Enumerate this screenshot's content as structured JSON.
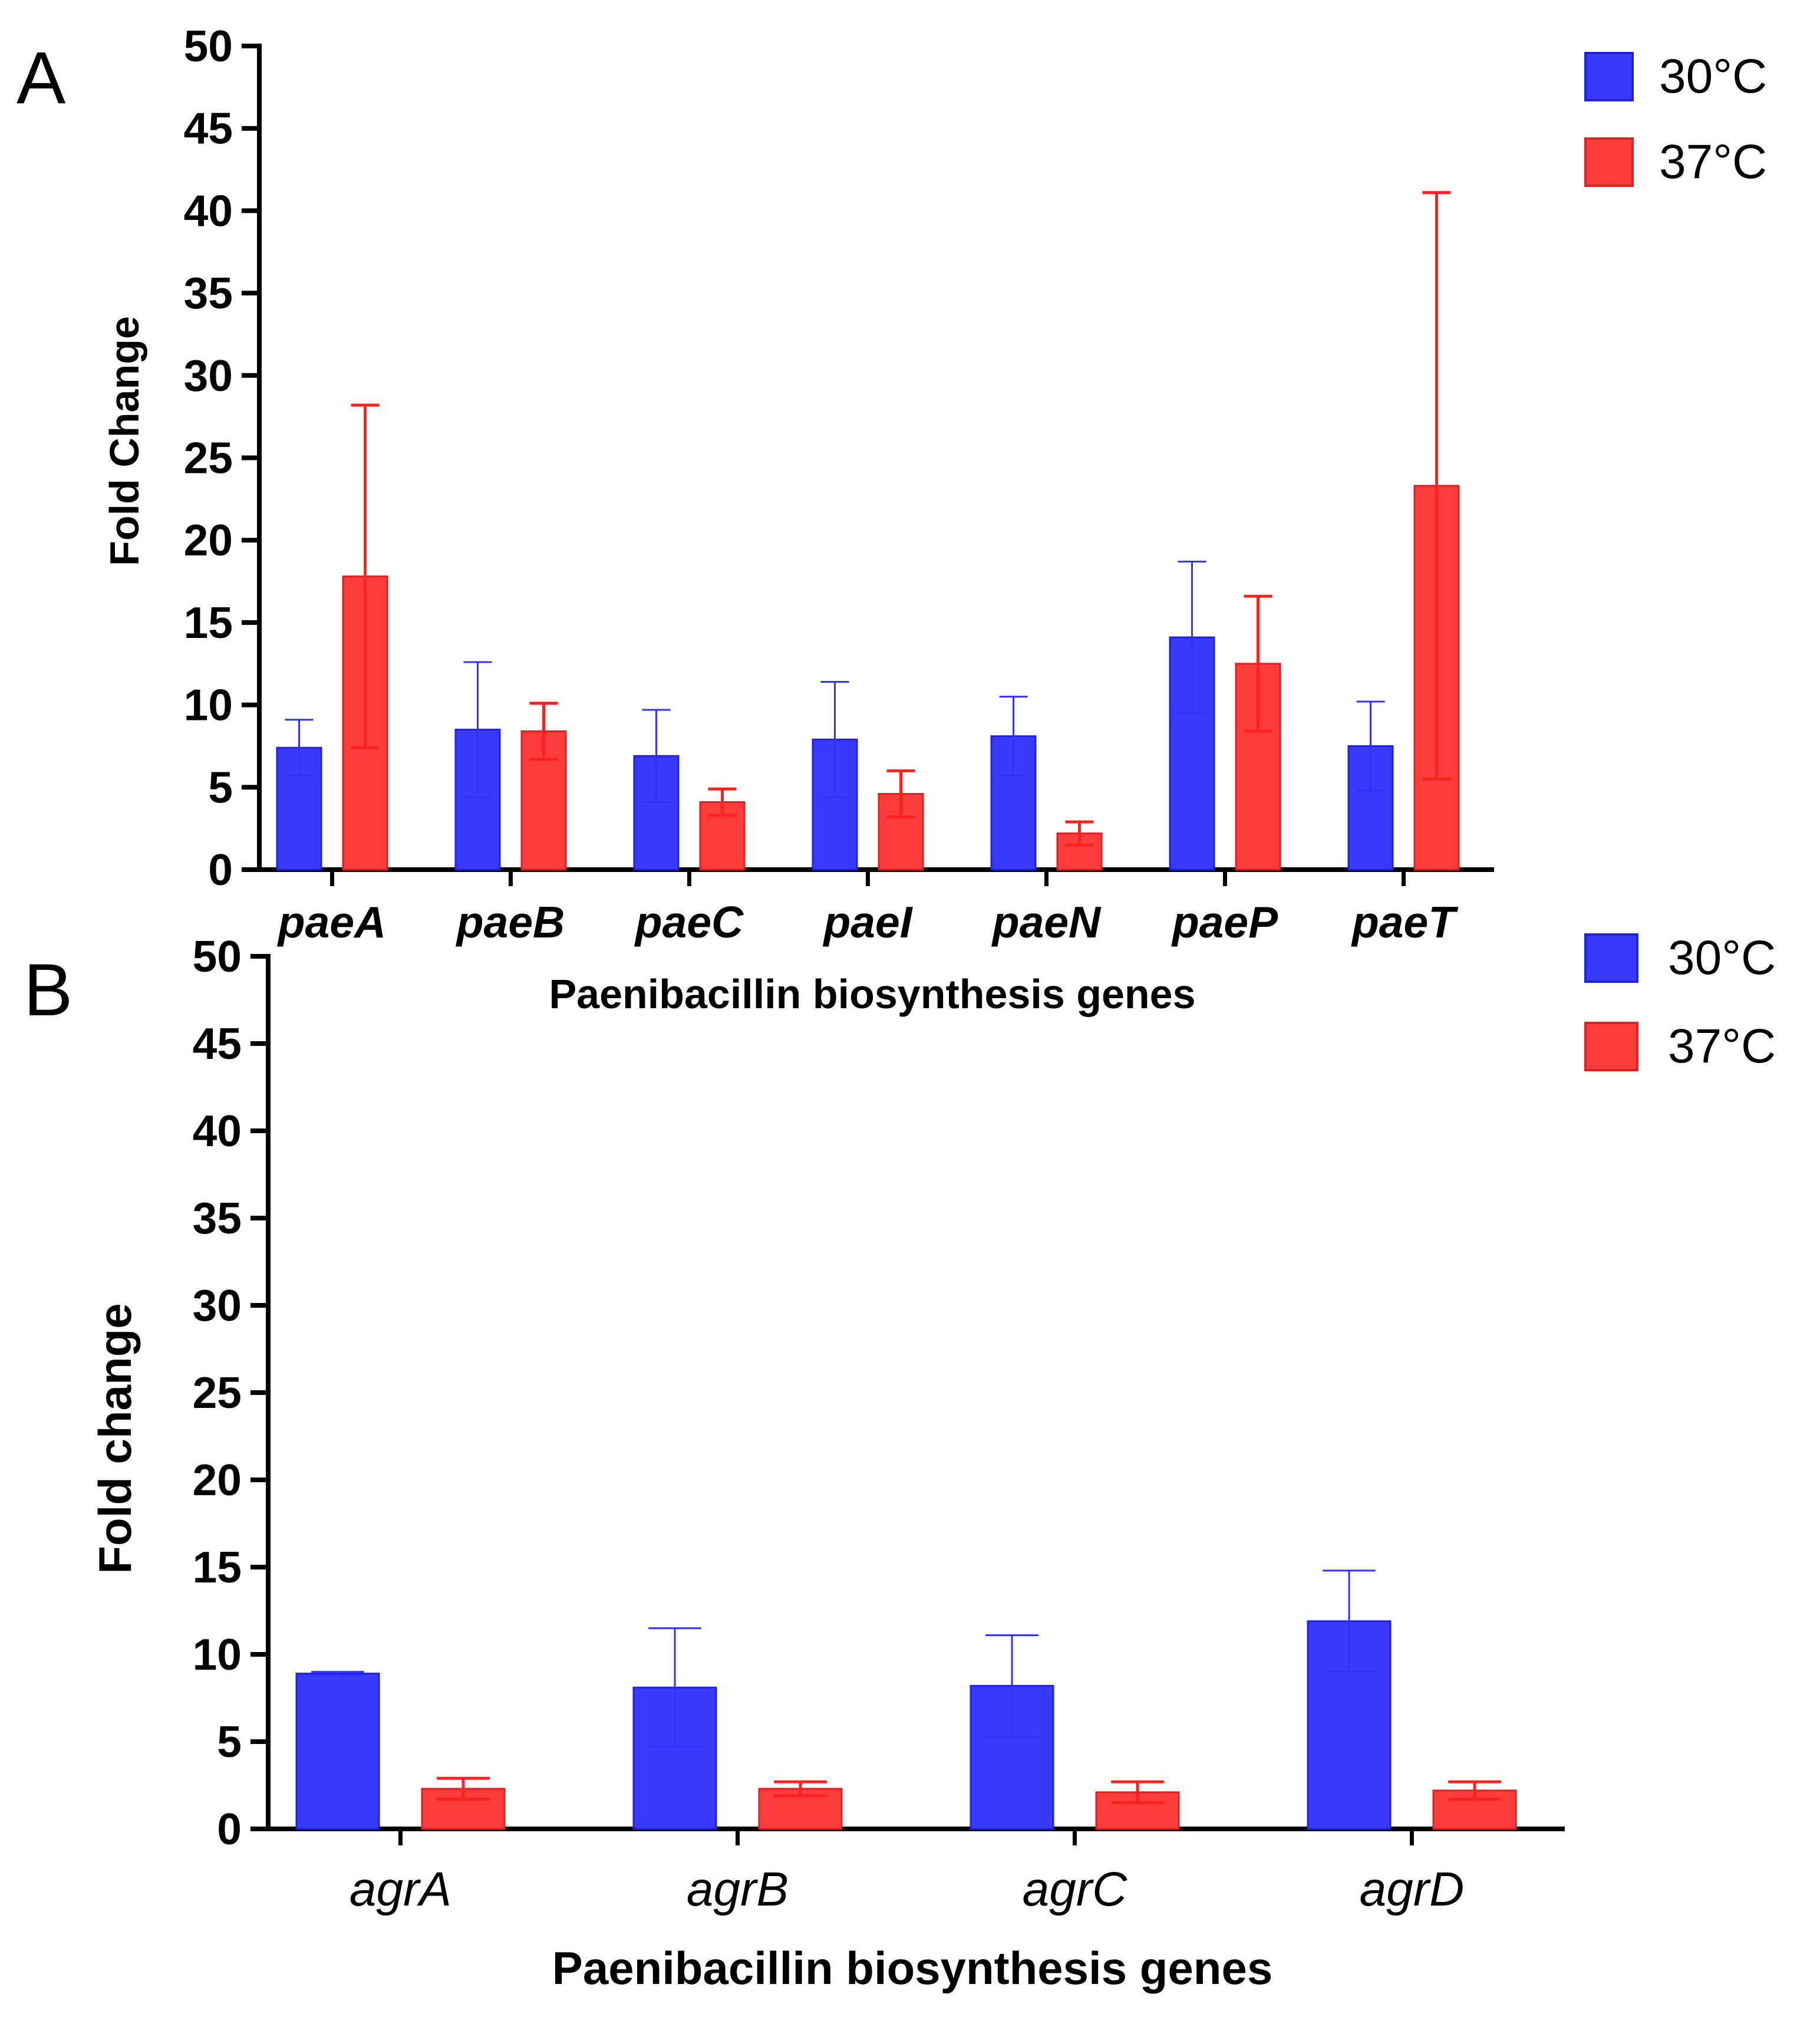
{
  "chart_data": [
    {
      "panel": "A",
      "type": "bar",
      "categories": [
        "paeA",
        "paeB",
        "paeC",
        "paeI",
        "paeN",
        "paeP",
        "paeT"
      ],
      "series": [
        {
          "name": "30°C",
          "color": "#3a3aff",
          "values": [
            7.4,
            8.5,
            6.9,
            7.9,
            8.1,
            14.1,
            7.5
          ],
          "errors": [
            1.7,
            4.1,
            2.8,
            3.5,
            2.4,
            4.6,
            2.7
          ]
        },
        {
          "name": "37°C",
          "color": "#ff3c3c",
          "values": [
            17.8,
            8.4,
            4.1,
            4.6,
            2.2,
            12.5,
            23.3
          ],
          "errors": [
            10.4,
            1.7,
            0.8,
            1.4,
            0.7,
            4.1,
            17.8
          ]
        }
      ],
      "xlabel": "Paenibacillin biosynthesis genes",
      "ylabel": "Fold Change",
      "ylim": [
        0,
        50
      ],
      "yticks": [
        "0",
        "5",
        "10",
        "15",
        "20",
        "25",
        "30",
        "35",
        "40",
        "45",
        "50"
      ],
      "legend": "top-right",
      "grid": false
    },
    {
      "panel": "B",
      "type": "bar",
      "categories": [
        "agrA",
        "agrB",
        "agrC",
        "agrD"
      ],
      "series": [
        {
          "name": "30°C",
          "color": "#3a3aff",
          "values": [
            8.9,
            8.1,
            8.2,
            11.9
          ],
          "errors": [
            0.1,
            3.4,
            2.9,
            2.9
          ]
        },
        {
          "name": "37°C",
          "color": "#ff3c3c",
          "values": [
            2.3,
            2.3,
            2.1,
            2.2
          ],
          "errors": [
            0.6,
            0.4,
            0.6,
            0.5
          ]
        }
      ],
      "xlabel": "Paenibacillin biosynthesis genes",
      "ylabel": "Fold change",
      "ylim": [
        0,
        50
      ],
      "yticks": [
        "0",
        "5",
        "10",
        "15",
        "20",
        "25",
        "30",
        "35",
        "40",
        "45",
        "50"
      ],
      "legend": "top-right",
      "grid": false
    }
  ]
}
